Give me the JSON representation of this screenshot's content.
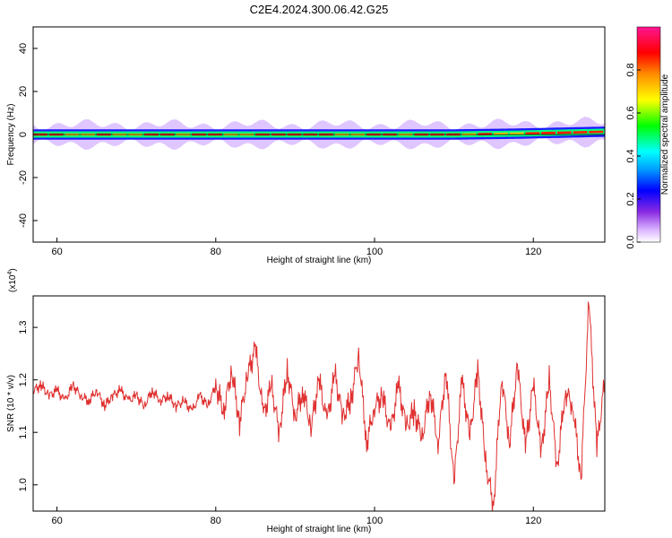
{
  "title": "C2E4.2024.300.06.42.G25",
  "chart_data": [
    {
      "type": "heatmap",
      "xlabel": "Height of straight line (km)",
      "ylabel": "Frequency (Hz)",
      "xlim": [
        57,
        129
      ],
      "ylim": [
        -50,
        50
      ],
      "xticks": [
        60,
        80,
        100,
        120
      ],
      "yticks": [
        -40,
        -20,
        0,
        20,
        40
      ],
      "colorbar": {
        "label": "Normalized spectral amplitude",
        "ticks": [
          0.0,
          0.2,
          0.4,
          0.6,
          0.8
        ],
        "range": [
          0,
          1
        ]
      },
      "band": {
        "center_hz": [
          [
            57,
            0.0
          ],
          [
            110,
            0.0
          ],
          [
            118,
            0.4
          ],
          [
            129,
            1.3
          ]
        ],
        "strong_halfwidth_hz": 1.2,
        "weak_halfwidth_hz": 4.5
      }
    },
    {
      "type": "line",
      "xlabel": "Height of straight line (km)",
      "ylabel": "SNR (10 * v/v)",
      "y_multiplier": "(x10^4)",
      "xlim": [
        57,
        129
      ],
      "ylim": [
        0.95,
        1.36
      ],
      "xticks": [
        60,
        80,
        100,
        120
      ],
      "yticks": [
        1.0,
        1.1,
        1.2,
        1.3
      ],
      "series": [
        {
          "color": "#e03030",
          "points": [
            [
              57,
              1.18
            ],
            [
              58,
              1.19
            ],
            [
              59,
              1.17
            ],
            [
              60,
              1.18
            ],
            [
              61,
              1.16
            ],
            [
              62,
              1.19
            ],
            [
              63,
              1.17
            ],
            [
              64,
              1.16
            ],
            [
              65,
              1.18
            ],
            [
              66,
              1.15
            ],
            [
              67,
              1.17
            ],
            [
              68,
              1.18
            ],
            [
              69,
              1.16
            ],
            [
              70,
              1.17
            ],
            [
              71,
              1.15
            ],
            [
              72,
              1.18
            ],
            [
              73,
              1.16
            ],
            [
              74,
              1.17
            ],
            [
              75,
              1.15
            ],
            [
              76,
              1.16
            ],
            [
              77,
              1.14
            ],
            [
              78,
              1.17
            ],
            [
              79,
              1.15
            ],
            [
              80,
              1.19
            ],
            [
              81,
              1.14
            ],
            [
              82,
              1.22
            ],
            [
              83,
              1.12
            ],
            [
              84,
              1.21
            ],
            [
              85,
              1.26
            ],
            [
              86,
              1.13
            ],
            [
              87,
              1.19
            ],
            [
              88,
              1.1
            ],
            [
              89,
              1.22
            ],
            [
              90,
              1.13
            ],
            [
              91,
              1.18
            ],
            [
              92,
              1.11
            ],
            [
              93,
              1.2
            ],
            [
              94,
              1.12
            ],
            [
              95,
              1.21
            ],
            [
              96,
              1.13
            ],
            [
              97,
              1.16
            ],
            [
              98,
              1.25
            ],
            [
              99,
              1.08
            ],
            [
              100,
              1.15
            ],
            [
              101,
              1.17
            ],
            [
              102,
              1.1
            ],
            [
              103,
              1.19
            ],
            [
              104,
              1.11
            ],
            [
              105,
              1.14
            ],
            [
              106,
              1.09
            ],
            [
              107,
              1.18
            ],
            [
              108,
              1.08
            ],
            [
              109,
              1.22
            ],
            [
              110,
              1.0
            ],
            [
              111,
              1.2
            ],
            [
              112,
              1.09
            ],
            [
              113,
              1.22
            ],
            [
              114,
              1.04
            ],
            [
              115,
              0.96
            ],
            [
              116,
              1.21
            ],
            [
              117,
              1.08
            ],
            [
              118,
              1.23
            ],
            [
              119,
              1.07
            ],
            [
              120,
              1.19
            ],
            [
              121,
              1.06
            ],
            [
              122,
              1.2
            ],
            [
              123,
              1.03
            ],
            [
              124,
              1.18
            ],
            [
              125,
              1.15
            ],
            [
              126,
              1.01
            ],
            [
              127,
              1.35
            ],
            [
              128,
              1.07
            ],
            [
              129,
              1.2
            ]
          ]
        }
      ]
    }
  ]
}
